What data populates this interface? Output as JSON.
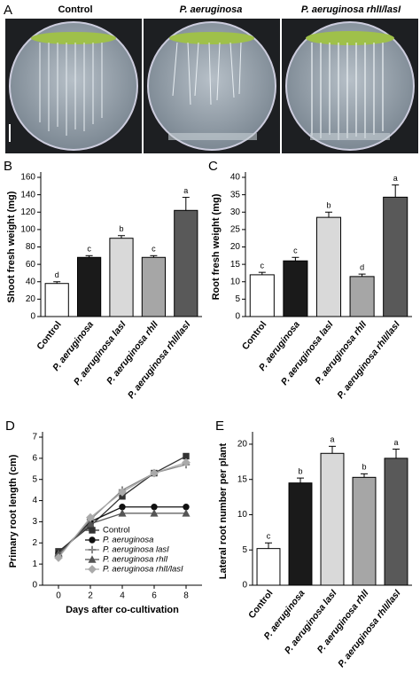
{
  "photos": {
    "panel_label": "A",
    "titles": [
      "Control",
      "P. aeruginosa",
      "P. aeruginosa rhlI/lasI"
    ]
  },
  "chart_data": [
    {
      "type": "bar",
      "panel_label": "B",
      "y_label": "Shoot fresh weight (mg)",
      "categories": [
        "Control",
        "P. aeruginosa",
        "P. aeruginosa lasI",
        "P. aeruginosa rhlI",
        "P. aeruginosa rhlI/lasI"
      ],
      "values": [
        38,
        68,
        90,
        68,
        122
      ],
      "errors": [
        2,
        2,
        3,
        2,
        15
      ],
      "letters": [
        "d",
        "c",
        "b",
        "c",
        "a"
      ],
      "colors": [
        "#ffffff",
        "#1a1a1a",
        "#d9d9d9",
        "#a6a6a6",
        "#595959"
      ],
      "ylim": [
        0,
        160
      ],
      "yticks": [
        0,
        20,
        40,
        60,
        80,
        100,
        120,
        140,
        160
      ]
    },
    {
      "type": "bar",
      "panel_label": "C",
      "y_label": "Root fresh weight (mg)",
      "categories": [
        "Control",
        "P. aeruginosa",
        "P. aeruginosa lasI",
        "P. aeruginosa rhlI",
        "P. aeruginosa rhlI/lasI"
      ],
      "values": [
        12,
        16,
        28.5,
        11.5,
        34.3
      ],
      "errors": [
        0.7,
        1,
        1.5,
        0.7,
        3.5
      ],
      "letters": [
        "c",
        "c",
        "b",
        "d",
        "a"
      ],
      "colors": [
        "#ffffff",
        "#1a1a1a",
        "#d9d9d9",
        "#a6a6a6",
        "#595959"
      ],
      "ylim": [
        0,
        40
      ],
      "yticks": [
        0,
        5,
        10,
        15,
        20,
        25,
        30,
        35,
        40
      ]
    },
    {
      "type": "line",
      "panel_label": "D",
      "x_label": "Days after co-cultivation",
      "y_label": "Primary root length (cm)",
      "x": [
        0,
        2,
        4,
        6,
        8
      ],
      "xlim": [
        -1,
        9
      ],
      "xticks": [
        0,
        2,
        4,
        6,
        8
      ],
      "ylim": [
        0,
        7
      ],
      "yticks": [
        0,
        1,
        2,
        3,
        4,
        5,
        6,
        7
      ],
      "series": [
        {
          "name": "Control",
          "color": "#333333",
          "marker": "square",
          "values": [
            1.6,
            2.8,
            4.2,
            5.3,
            6.1
          ]
        },
        {
          "name": "P. aeruginosa",
          "color": "#111111",
          "marker": "circle",
          "values": [
            1.5,
            3.0,
            3.7,
            3.7,
            3.7
          ]
        },
        {
          "name": "P. aeruginosa lasI",
          "color": "#888888",
          "marker": "plus",
          "values": [
            1.4,
            3.1,
            4.5,
            5.3,
            5.7
          ]
        },
        {
          "name": "P. aeruginosa rhlI",
          "color": "#555555",
          "marker": "triangle",
          "values": [
            1.5,
            2.9,
            3.4,
            3.4,
            3.4
          ]
        },
        {
          "name": "P. aeruginosa rhlI/lasI",
          "color": "#aaaaaa",
          "marker": "diamond",
          "values": [
            1.3,
            3.2,
            4.4,
            5.3,
            5.8
          ]
        }
      ]
    },
    {
      "type": "bar",
      "panel_label": "E",
      "y_label": "Lateral root number per plant",
      "categories": [
        "Control",
        "P. aeruginosa",
        "P. aeruginosa lasI",
        "P. aeruginosa rhlI",
        "P. aeruginosa rhlI/lasI"
      ],
      "values": [
        5.2,
        14.5,
        18.7,
        15.3,
        18
      ],
      "errors": [
        0.8,
        0.7,
        1,
        0.5,
        1.3
      ],
      "letters": [
        "c",
        "b",
        "a",
        "b",
        "a"
      ],
      "colors": [
        "#ffffff",
        "#1a1a1a",
        "#d9d9d9",
        "#a6a6a6",
        "#595959"
      ],
      "ylim": [
        0,
        21
      ],
      "yticks": [
        0,
        5,
        10,
        15,
        20
      ]
    }
  ]
}
